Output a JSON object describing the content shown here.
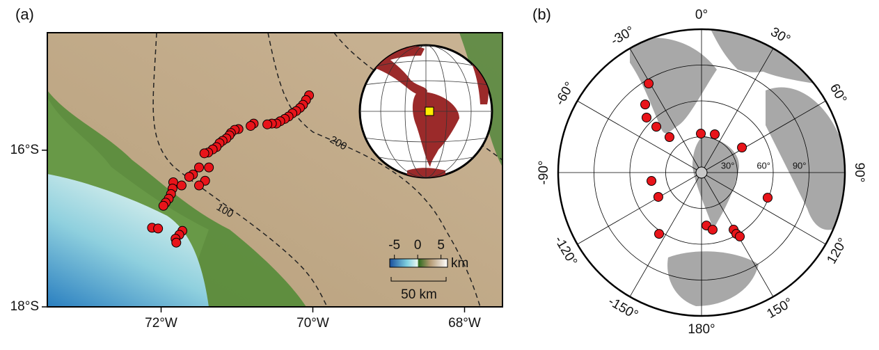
{
  "panel_a": {
    "label": "(a)",
    "xlim": [
      -73.5,
      -67.5
    ],
    "ylim": [
      -18,
      -14.5
    ],
    "xticks": [
      {
        "value": -72,
        "label": "72°W"
      },
      {
        "value": -70,
        "label": "70°W"
      },
      {
        "value": -68,
        "label": "68°W"
      }
    ],
    "yticks": [
      {
        "value": -16,
        "label": "16°S"
      },
      {
        "value": -18,
        "label": "18°S"
      }
    ],
    "station_color": "#e8141a",
    "stations": {
      "lon": [
        -70.05,
        -70.09,
        -70.13,
        -70.17,
        -70.22,
        -70.27,
        -70.32,
        -70.37,
        -70.43,
        -70.48,
        -70.54,
        -70.6,
        -70.78,
        -70.82,
        -70.98,
        -71.03,
        -71.08,
        -71.1,
        -71.14,
        -71.19,
        -71.23,
        -71.27,
        -71.32,
        -71.38,
        -71.43,
        -71.37,
        -71.5,
        -71.58,
        -71.63,
        -71.73,
        -71.84,
        -71.42,
        -71.5,
        -71.85,
        -71.87,
        -71.9,
        -71.94,
        -71.97,
        -72.12,
        -72.04,
        -71.72,
        -71.76,
        -71.81,
        -71.8
      ],
      "lat": [
        -15.3,
        -15.36,
        -15.42,
        -15.46,
        -15.5,
        -15.53,
        -15.57,
        -15.6,
        -15.63,
        -15.66,
        -15.66,
        -15.67,
        -15.66,
        -15.69,
        -15.73,
        -15.74,
        -15.78,
        -15.81,
        -15.85,
        -15.88,
        -15.91,
        -15.96,
        -15.99,
        -16.03,
        -16.04,
        -16.22,
        -16.22,
        -16.31,
        -16.34,
        -16.45,
        -16.41,
        -16.39,
        -16.45,
        -16.49,
        -16.56,
        -16.62,
        -16.67,
        -16.71,
        -16.99,
        -17.0,
        -17.03,
        -17.08,
        -17.13,
        -17.18
      ]
    },
    "contour_labels": [
      100,
      200
    ],
    "colorbar": {
      "lim": [
        -6,
        6.4
      ],
      "ticks": [
        -5,
        0,
        5
      ],
      "unit": "km"
    },
    "scalebar": {
      "label": "50 km"
    }
  },
  "panel_b": {
    "label": "(b)",
    "max_distance": 120,
    "azimuth_ticks": [
      {
        "value": 0,
        "label": "0°"
      },
      {
        "value": 30,
        "label": "30°"
      },
      {
        "value": 60,
        "label": "60°"
      },
      {
        "value": 90,
        "label": "90°"
      },
      {
        "value": 120,
        "label": "120°"
      },
      {
        "value": 150,
        "label": "150°"
      },
      {
        "value": 180,
        "label": "180°"
      },
      {
        "value": -150,
        "label": "-150°"
      },
      {
        "value": -120,
        "label": "-120°"
      },
      {
        "value": -90,
        "label": "-90°"
      },
      {
        "value": -60,
        "label": "-60°"
      },
      {
        "value": -30,
        "label": "-30°"
      }
    ],
    "distance_ticks": [
      {
        "value": 30,
        "label": "30°"
      },
      {
        "value": 60,
        "label": "60°"
      },
      {
        "value": 90,
        "label": "90°"
      }
    ],
    "event_color": "#e8141a",
    "events": {
      "distance": [
        86.7,
        74.0,
        65.1,
        53.9,
        40.0,
        32.6,
        33.9,
        39.8,
        42.5,
        41.5,
        59.2,
        62.4,
        44.5,
        48.7,
        54.8,
        59.0,
        62.4
      ],
      "azimuth": [
        -30.7,
        -39.6,
        -45.0,
        -44.6,
        -42.1,
        -1.0,
        19.1,
        58.2,
        -99.5,
        -119.4,
        110.8,
        -145.3,
        174.7,
        169.0,
        150.7,
        150.4,
        149.1
      ]
    }
  }
}
